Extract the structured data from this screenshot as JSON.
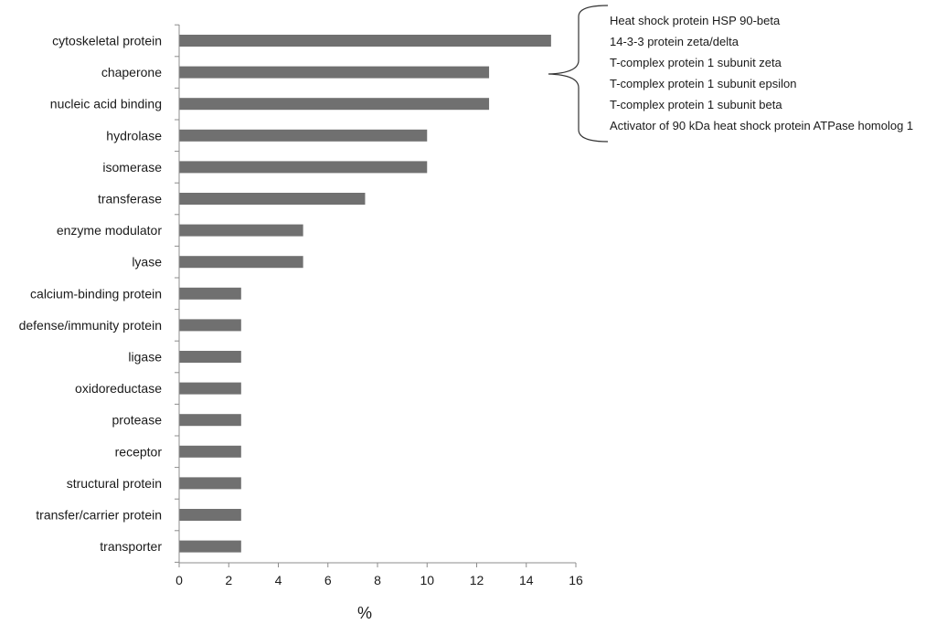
{
  "chart_data": {
    "type": "bar",
    "orientation": "horizontal",
    "categories": [
      "cytoskeletal protein",
      "chaperone",
      "nucleic acid binding",
      "hydrolase",
      "isomerase",
      "transferase",
      "enzyme modulator",
      "lyase",
      "calcium-binding protein",
      "defense/immunity protein",
      "ligase",
      "oxidoreductase",
      "protease",
      "receptor",
      "structural protein",
      "transfer/carrier protein",
      "transporter"
    ],
    "values": [
      15,
      12.5,
      12.5,
      10,
      10,
      7.5,
      5,
      5,
      2.5,
      2.5,
      2.5,
      2.5,
      2.5,
      2.5,
      2.5,
      2.5,
      2.5
    ],
    "xlabel": "%",
    "ylabel": "",
    "xlim": [
      0,
      16
    ],
    "xticks": [
      0,
      2,
      4,
      6,
      8,
      10,
      12,
      14,
      16
    ],
    "grid": false,
    "bar_color": "#707070",
    "annotation": {
      "target_category": "chaperone",
      "items": [
        "Heat shock protein HSP 90-beta",
        "14-3-3 protein zeta/delta",
        "T-complex protein 1 subunit zeta",
        "T-complex protein 1 subunit epsilon",
        "T-complex protein 1 subunit beta",
        "Activator of 90 kDa heat shock protein ATPase homolog 1"
      ]
    }
  }
}
